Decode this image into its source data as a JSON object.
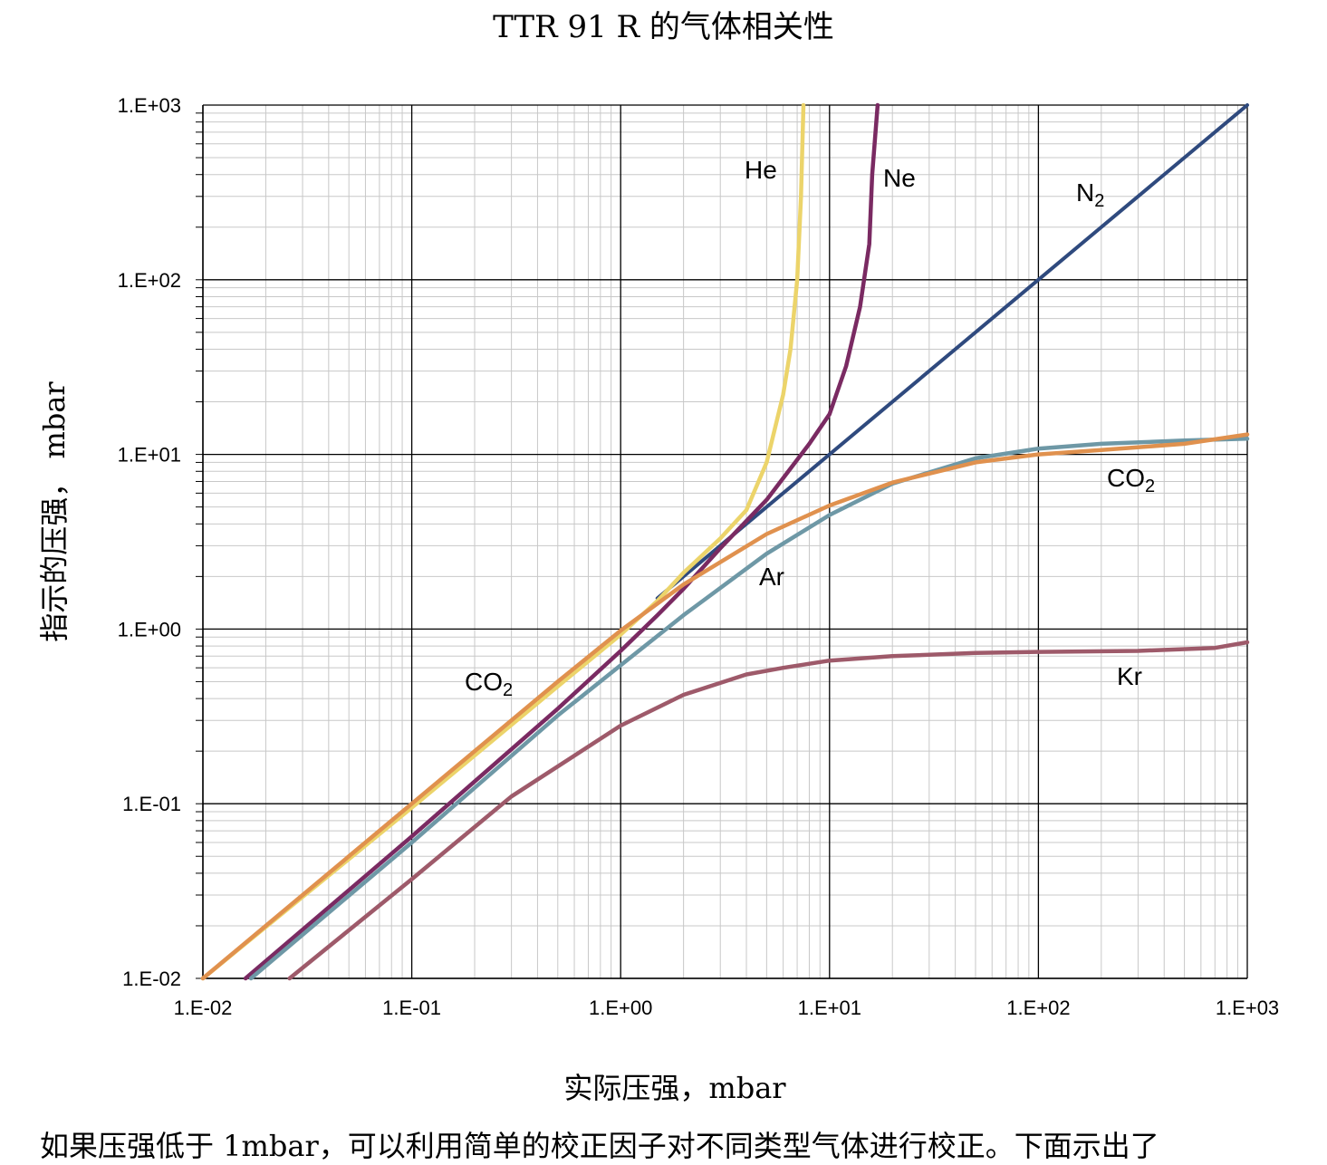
{
  "title": "TTR 91 R 的气体相关性",
  "caption": "如果压强低于 1mbar，可以利用简单的校正因子对不同类型气体进行校正。下面示出了",
  "colors": {
    "He": "#ecd46a",
    "Ne": "#7a2a62",
    "N2": "#2f4a7e",
    "Ar": "#6e98a6",
    "CO2": "#e0914e",
    "Kr": "#9e5a6a",
    "grid_major": "#000000",
    "grid_minor": "#c8c8c8"
  },
  "chart_data": {
    "type": "line",
    "title": "TTR 91 R 的气体相关性",
    "xlabel": "实际压强，mbar",
    "ylabel": "指示的压强， mbar",
    "xscale": "log",
    "yscale": "log",
    "xlim": [
      0.01,
      1000
    ],
    "ylim": [
      0.01,
      1000
    ],
    "grid": true,
    "xticks": [
      "1.E-02",
      "1.E-01",
      "1.E+00",
      "1.E+01",
      "1.E+02",
      "1.E+03"
    ],
    "yticks": [
      "1.E-02",
      "1.E-01",
      "1.E+00",
      "1.E+01",
      "1.E+02",
      "1.E+03"
    ],
    "series": [
      {
        "id": "N2",
        "labels": [
          {
            "base": "N",
            "sub": "2"
          }
        ],
        "x": [
          1.5,
          1000
        ],
        "y": [
          1.5,
          1000
        ]
      },
      {
        "id": "He",
        "labels": [
          {
            "base": "He",
            "sub": ""
          }
        ],
        "x": [
          0.01,
          0.1,
          0.5,
          1.0,
          1.5,
          2.0,
          3.0,
          4.0,
          5.0,
          6.0,
          6.5,
          7.0,
          7.3,
          7.5
        ],
        "y": [
          0.0097,
          0.095,
          0.47,
          0.93,
          1.45,
          2.1,
          3.3,
          4.8,
          9.0,
          22.0,
          40.0,
          100.0,
          300.0,
          1000.0
        ]
      },
      {
        "id": "Ne",
        "labels": [
          {
            "base": "Ne",
            "sub": ""
          }
        ],
        "x": [
          0.016,
          0.1,
          0.5,
          1.0,
          1.5,
          2.0,
          3.0,
          5.0,
          8.0,
          10.0,
          12.0,
          14.0,
          15.5,
          16.0,
          17.0
        ],
        "y": [
          0.01,
          0.065,
          0.35,
          0.75,
          1.2,
          1.7,
          2.9,
          5.5,
          11.5,
          17.0,
          32.0,
          70.0,
          160.0,
          400.0,
          1000.0
        ]
      },
      {
        "id": "Ar",
        "labels": [
          {
            "base": "Ar",
            "sub": ""
          }
        ],
        "x": [
          0.017,
          0.1,
          0.5,
          1.0,
          2.0,
          5.0,
          10.0,
          20.0,
          50.0,
          100.0,
          200.0,
          500.0,
          1000.0
        ],
        "y": [
          0.01,
          0.06,
          0.32,
          0.62,
          1.2,
          2.7,
          4.5,
          6.8,
          9.5,
          10.8,
          11.5,
          12.0,
          12.3
        ]
      },
      {
        "id": "CO2",
        "labels": [
          {
            "base": "CO",
            "sub": "2"
          },
          {
            "base": "CO",
            "sub": "2"
          }
        ],
        "x": [
          0.01,
          0.1,
          0.5,
          1.0,
          2.0,
          5.0,
          10.0,
          20.0,
          50.0,
          100.0,
          200.0,
          500.0,
          1000.0
        ],
        "y": [
          0.01,
          0.1,
          0.5,
          0.98,
          1.8,
          3.5,
          5.1,
          6.9,
          9.0,
          10.0,
          10.6,
          11.5,
          13.0
        ]
      },
      {
        "id": "Kr",
        "labels": [
          {
            "base": "Kr",
            "sub": ""
          }
        ],
        "x": [
          0.026,
          0.1,
          0.3,
          1.0,
          2.0,
          4.0,
          6.0,
          10.0,
          20.0,
          50.0,
          100.0,
          300.0,
          700.0,
          1000.0
        ],
        "y": [
          0.01,
          0.037,
          0.11,
          0.28,
          0.42,
          0.55,
          0.6,
          0.66,
          0.7,
          0.73,
          0.74,
          0.75,
          0.78,
          0.84
        ]
      }
    ]
  }
}
